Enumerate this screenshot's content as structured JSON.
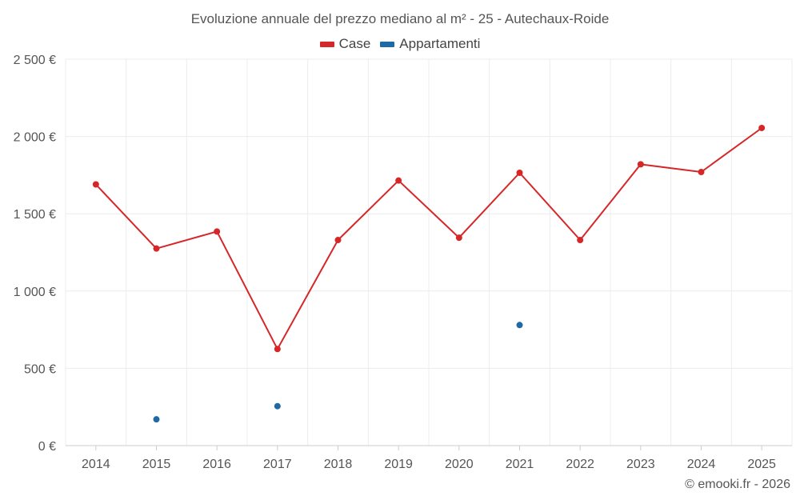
{
  "chart_data": {
    "type": "line",
    "title": "Evoluzione annuale del prezzo mediano al m² - 25 - Autechaux-Roide",
    "categories": [
      "2014",
      "2015",
      "2016",
      "2017",
      "2018",
      "2019",
      "2020",
      "2021",
      "2022",
      "2023",
      "2024",
      "2025"
    ],
    "series": [
      {
        "name": "Case",
        "color": "#d62728",
        "style": "line-with-markers",
        "values": [
          1690,
          1275,
          1385,
          625,
          1330,
          1715,
          1345,
          1765,
          1330,
          1820,
          1770,
          2055
        ]
      },
      {
        "name": "Appartamenti",
        "color": "#1f6aa5",
        "style": "markers-only",
        "values": [
          null,
          170,
          null,
          255,
          null,
          null,
          null,
          780,
          null,
          null,
          null,
          null
        ]
      }
    ],
    "y_ticks": [
      "0 €",
      "500 €",
      "1 000 €",
      "1 500 €",
      "2 000 €",
      "2 500 €"
    ],
    "y_tick_values": [
      0,
      500,
      1000,
      1500,
      2000,
      2500
    ],
    "ylim": [
      0,
      2500
    ],
    "xlabel": "",
    "ylabel": "",
    "grid": true,
    "legend_position": "top-center"
  },
  "credit": "© emooki.fr - 2026"
}
